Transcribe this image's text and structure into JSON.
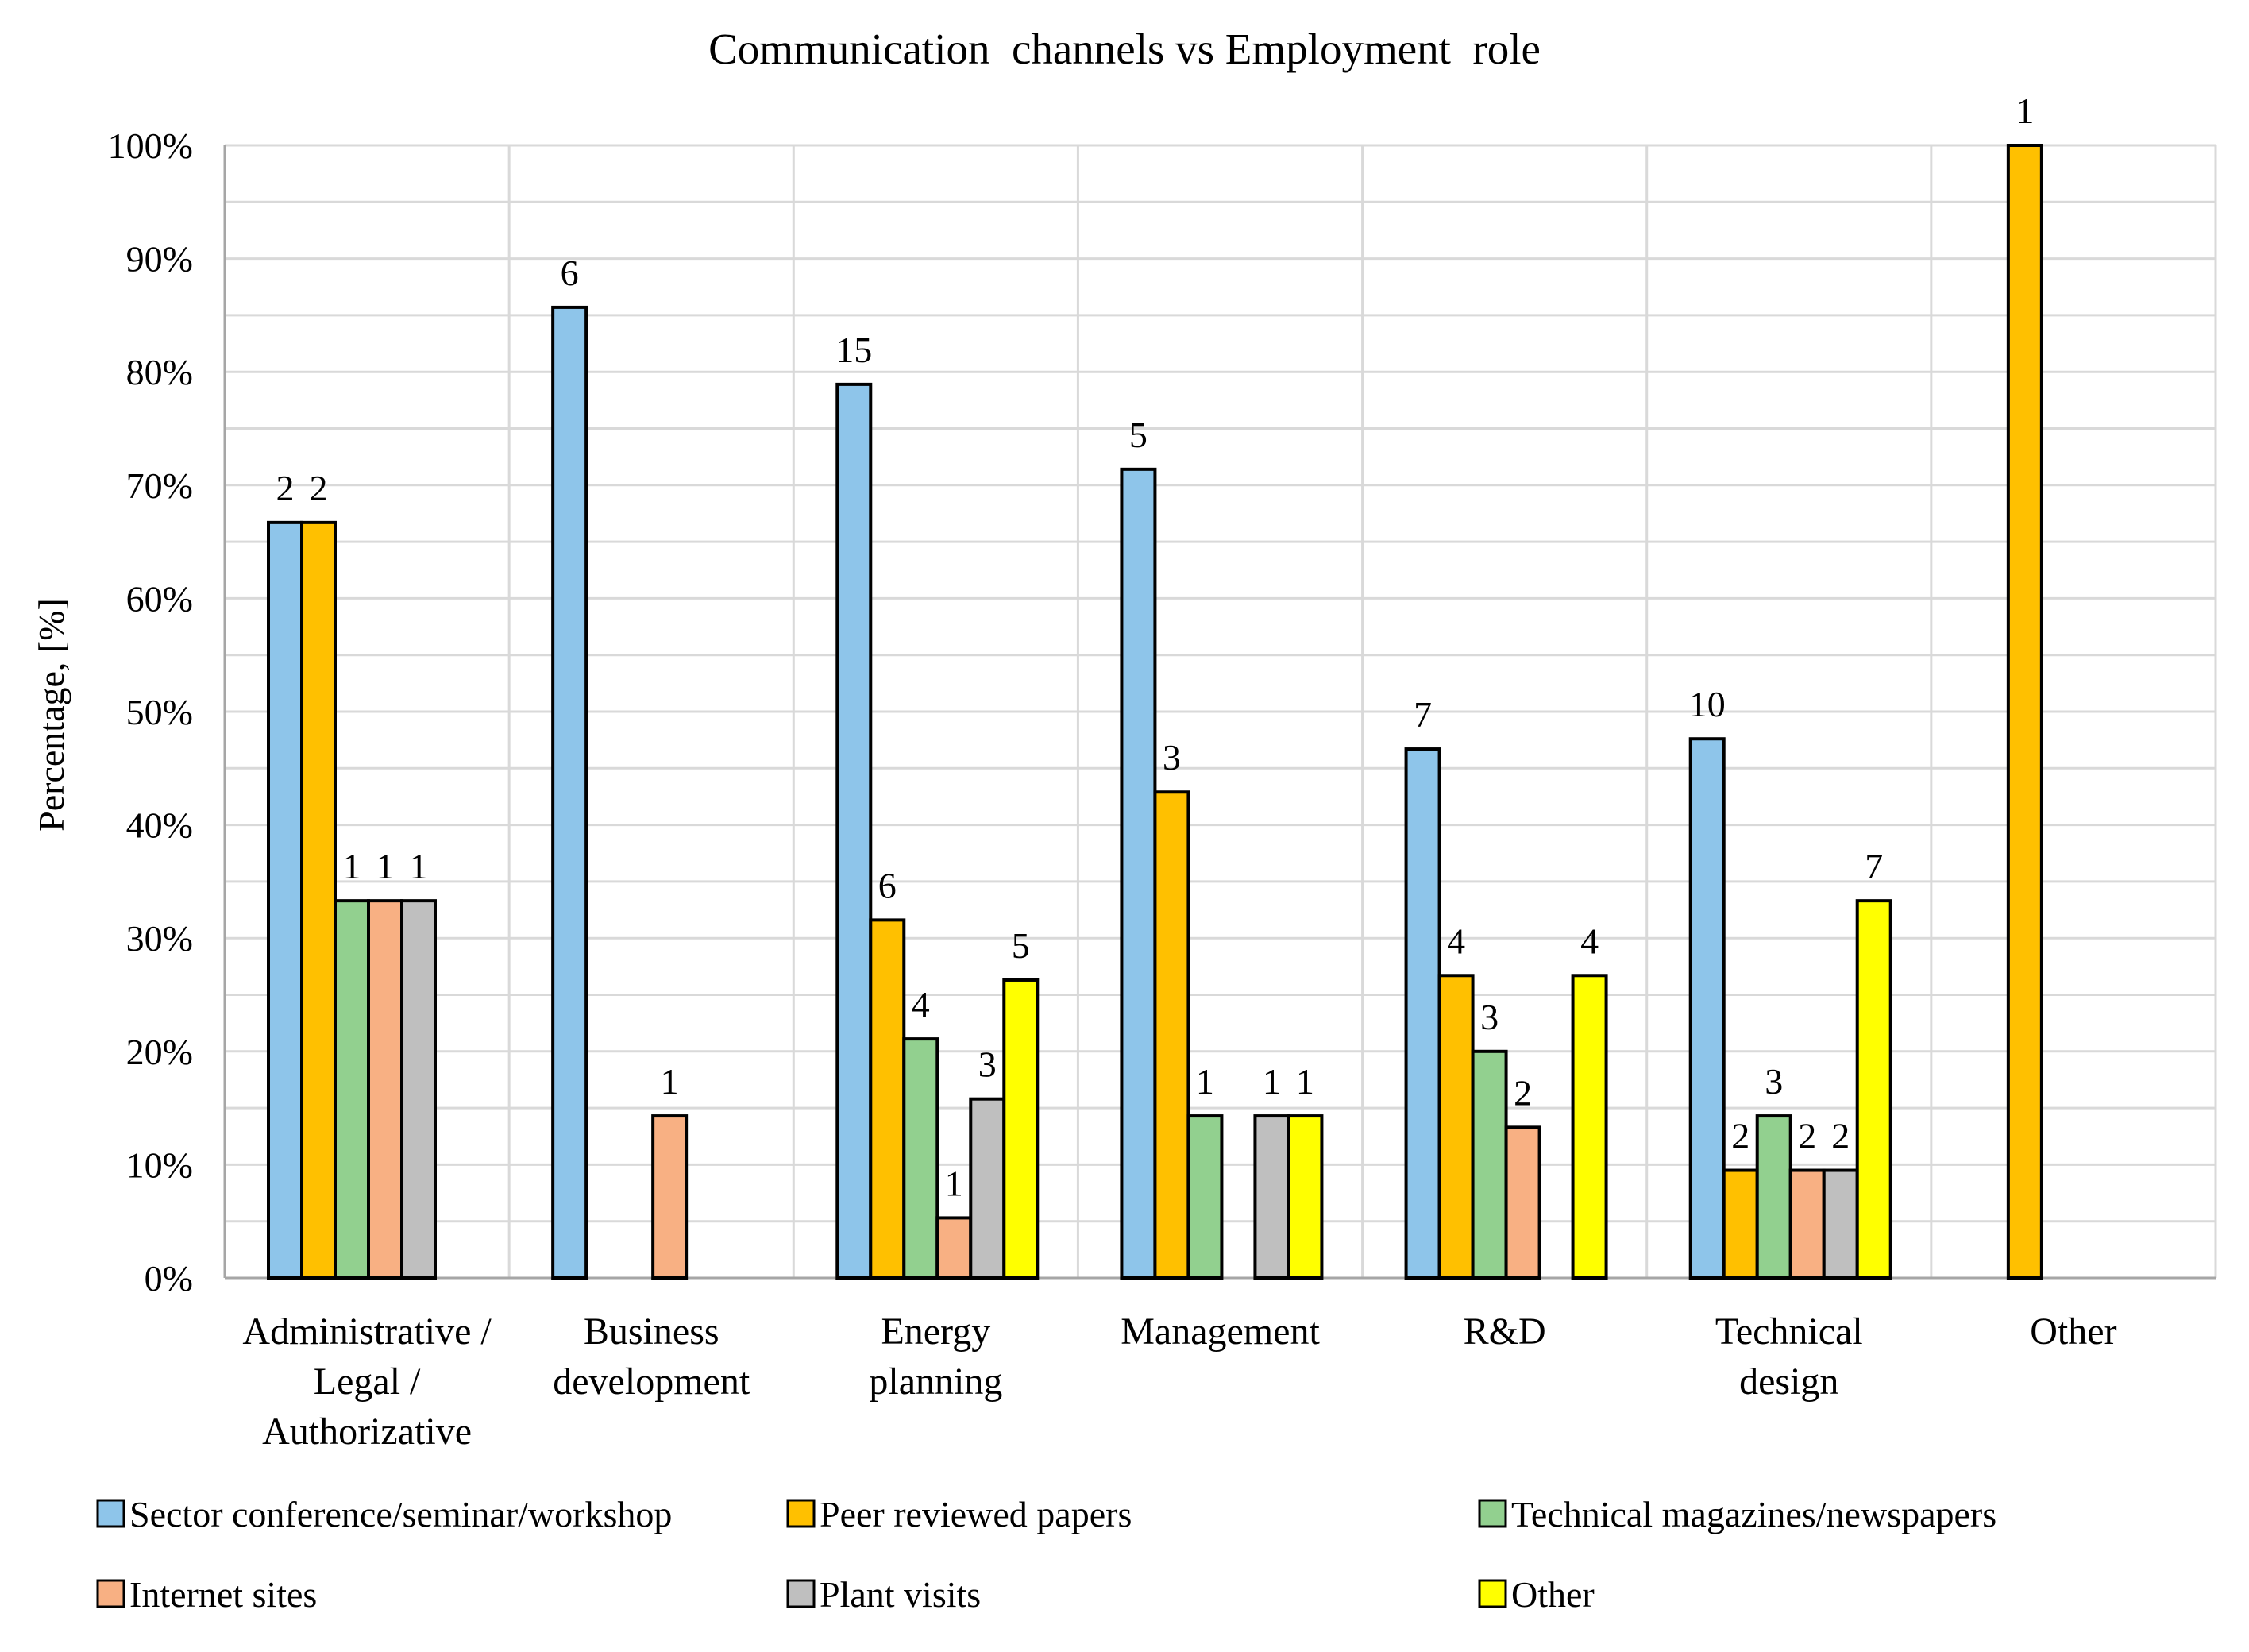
{
  "chart_data": {
    "type": "bar",
    "title": "Communication  channels vs Employment  role",
    "xlabel": "",
    "ylabel": "Percentage, [%]",
    "ylim": [
      0,
      100
    ],
    "yticks": [
      "0%",
      "10%",
      "20%",
      "30%",
      "40%",
      "50%",
      "60%",
      "70%",
      "80%",
      "90%",
      "100%"
    ],
    "grid": true,
    "legend_position": "bottom",
    "categories": [
      [
        "Administrative /",
        "Legal /",
        "Authorizative"
      ],
      [
        "Business",
        "development"
      ],
      [
        "Energy",
        "planning"
      ],
      [
        "Management"
      ],
      [
        "R&D"
      ],
      [
        "Technical",
        "design"
      ],
      [
        "Other"
      ]
    ],
    "series": [
      {
        "name": "Sector conference/seminar/workshop",
        "color": "#8ec5ea",
        "values": [
          66.7,
          85.7,
          78.9,
          71.4,
          46.7,
          47.6,
          null
        ],
        "labels": [
          "2",
          "6",
          "15",
          "5",
          "7",
          "10",
          null
        ]
      },
      {
        "name": "Peer reviewed papers",
        "color": "#ffc000",
        "values": [
          66.7,
          null,
          31.6,
          42.9,
          26.7,
          9.5,
          100
        ],
        "labels": [
          "2",
          null,
          "6",
          "3",
          "4",
          "2",
          "1"
        ]
      },
      {
        "name": "Technical magazines/newspapers",
        "color": "#92d08f",
        "values": [
          33.3,
          null,
          21.1,
          14.3,
          20.0,
          14.3,
          null
        ],
        "labels": [
          "1",
          null,
          "4",
          "1",
          "3",
          "3",
          null
        ]
      },
      {
        "name": "Internet sites",
        "color": "#f8b083",
        "values": [
          33.3,
          14.3,
          5.3,
          null,
          13.3,
          9.5,
          null
        ],
        "labels": [
          "1",
          "1",
          "1",
          null,
          "2",
          "2",
          null
        ]
      },
      {
        "name": "Plant visits",
        "color": "#bfbfbf",
        "values": [
          33.3,
          null,
          15.8,
          14.3,
          null,
          9.5,
          null
        ],
        "labels": [
          "1",
          null,
          "3",
          "1",
          null,
          "2",
          null
        ]
      },
      {
        "name": "Other",
        "color": "#ffff00",
        "values": [
          null,
          null,
          26.3,
          14.3,
          26.7,
          33.3,
          null
        ],
        "labels": [
          null,
          null,
          "5",
          "1",
          "4",
          "7",
          null
        ]
      }
    ]
  }
}
